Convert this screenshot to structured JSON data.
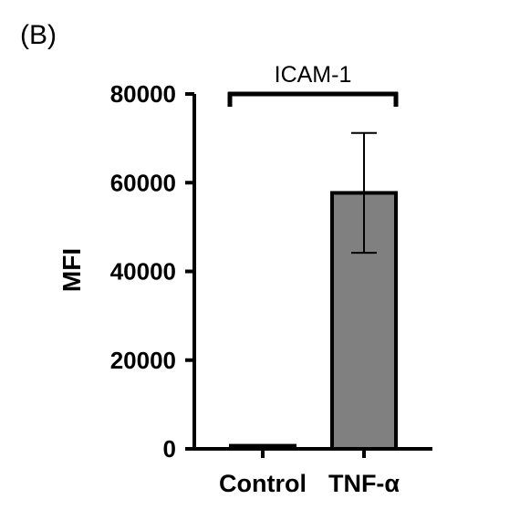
{
  "panel_label": "(B)",
  "chart_data": {
    "type": "bar",
    "title": "",
    "bracket_label": "ICAM-1",
    "xlabel": "",
    "ylabel": "MFI",
    "ylim": [
      0,
      80000
    ],
    "yticks": [
      0,
      20000,
      40000,
      60000,
      80000
    ],
    "ytick_labels": [
      "0",
      "20000",
      "40000",
      "60000",
      "80000"
    ],
    "categories": [
      "Control",
      "TNF-α"
    ],
    "values": [
      700,
      57700
    ],
    "errors": [
      null,
      13500
    ],
    "bar_color": "#808080",
    "edge_color": "#000000",
    "grid": false
  }
}
